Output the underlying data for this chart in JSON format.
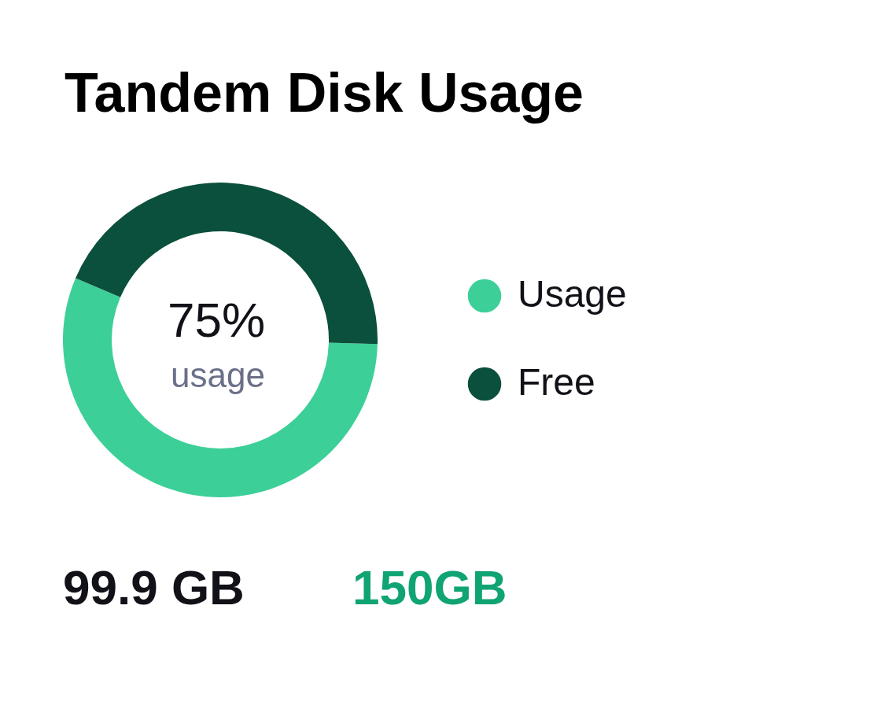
{
  "chart_data": {
    "type": "donut",
    "title": "Tandem Disk Usage",
    "categories": [
      "Usage",
      "Free"
    ],
    "values": [
      56,
      44
    ],
    "colors": [
      "#3dcf98",
      "#0a503c"
    ],
    "legend": "right",
    "annotations": [
      "75%",
      "usage",
      "99.9 GB",
      "150GB"
    ]
  }
}
